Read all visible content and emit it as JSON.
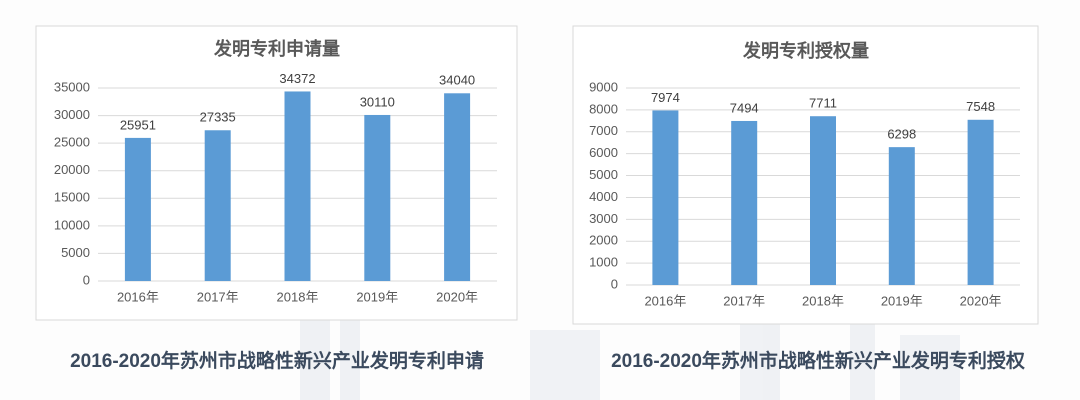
{
  "chart_data": [
    {
      "type": "bar",
      "title": "发明专利申请量",
      "caption": "2016-2020年苏州市战略性新兴产业发明专利申请",
      "categories": [
        "2016年",
        "2017年",
        "2018年",
        "2019年",
        "2020年"
      ],
      "values": [
        25951,
        27335,
        34372,
        30110,
        34040
      ],
      "color": "#5b9bd5",
      "ylim": [
        0,
        35000
      ],
      "yticks": [
        0,
        5000,
        10000,
        15000,
        20000,
        25000,
        30000,
        35000
      ],
      "grid": true
    },
    {
      "type": "bar",
      "title": "发明专利授权量",
      "caption": "2016-2020年苏州市战略性新兴产业发明专利授权",
      "categories": [
        "2016年",
        "2017年",
        "2018年",
        "2019年",
        "2020年"
      ],
      "values": [
        7974,
        7494,
        7711,
        6298,
        7548
      ],
      "color": "#5b9bd5",
      "ylim": [
        0,
        9000
      ],
      "yticks": [
        0,
        1000,
        2000,
        3000,
        4000,
        5000,
        6000,
        7000,
        8000,
        9000
      ],
      "grid": true
    }
  ]
}
